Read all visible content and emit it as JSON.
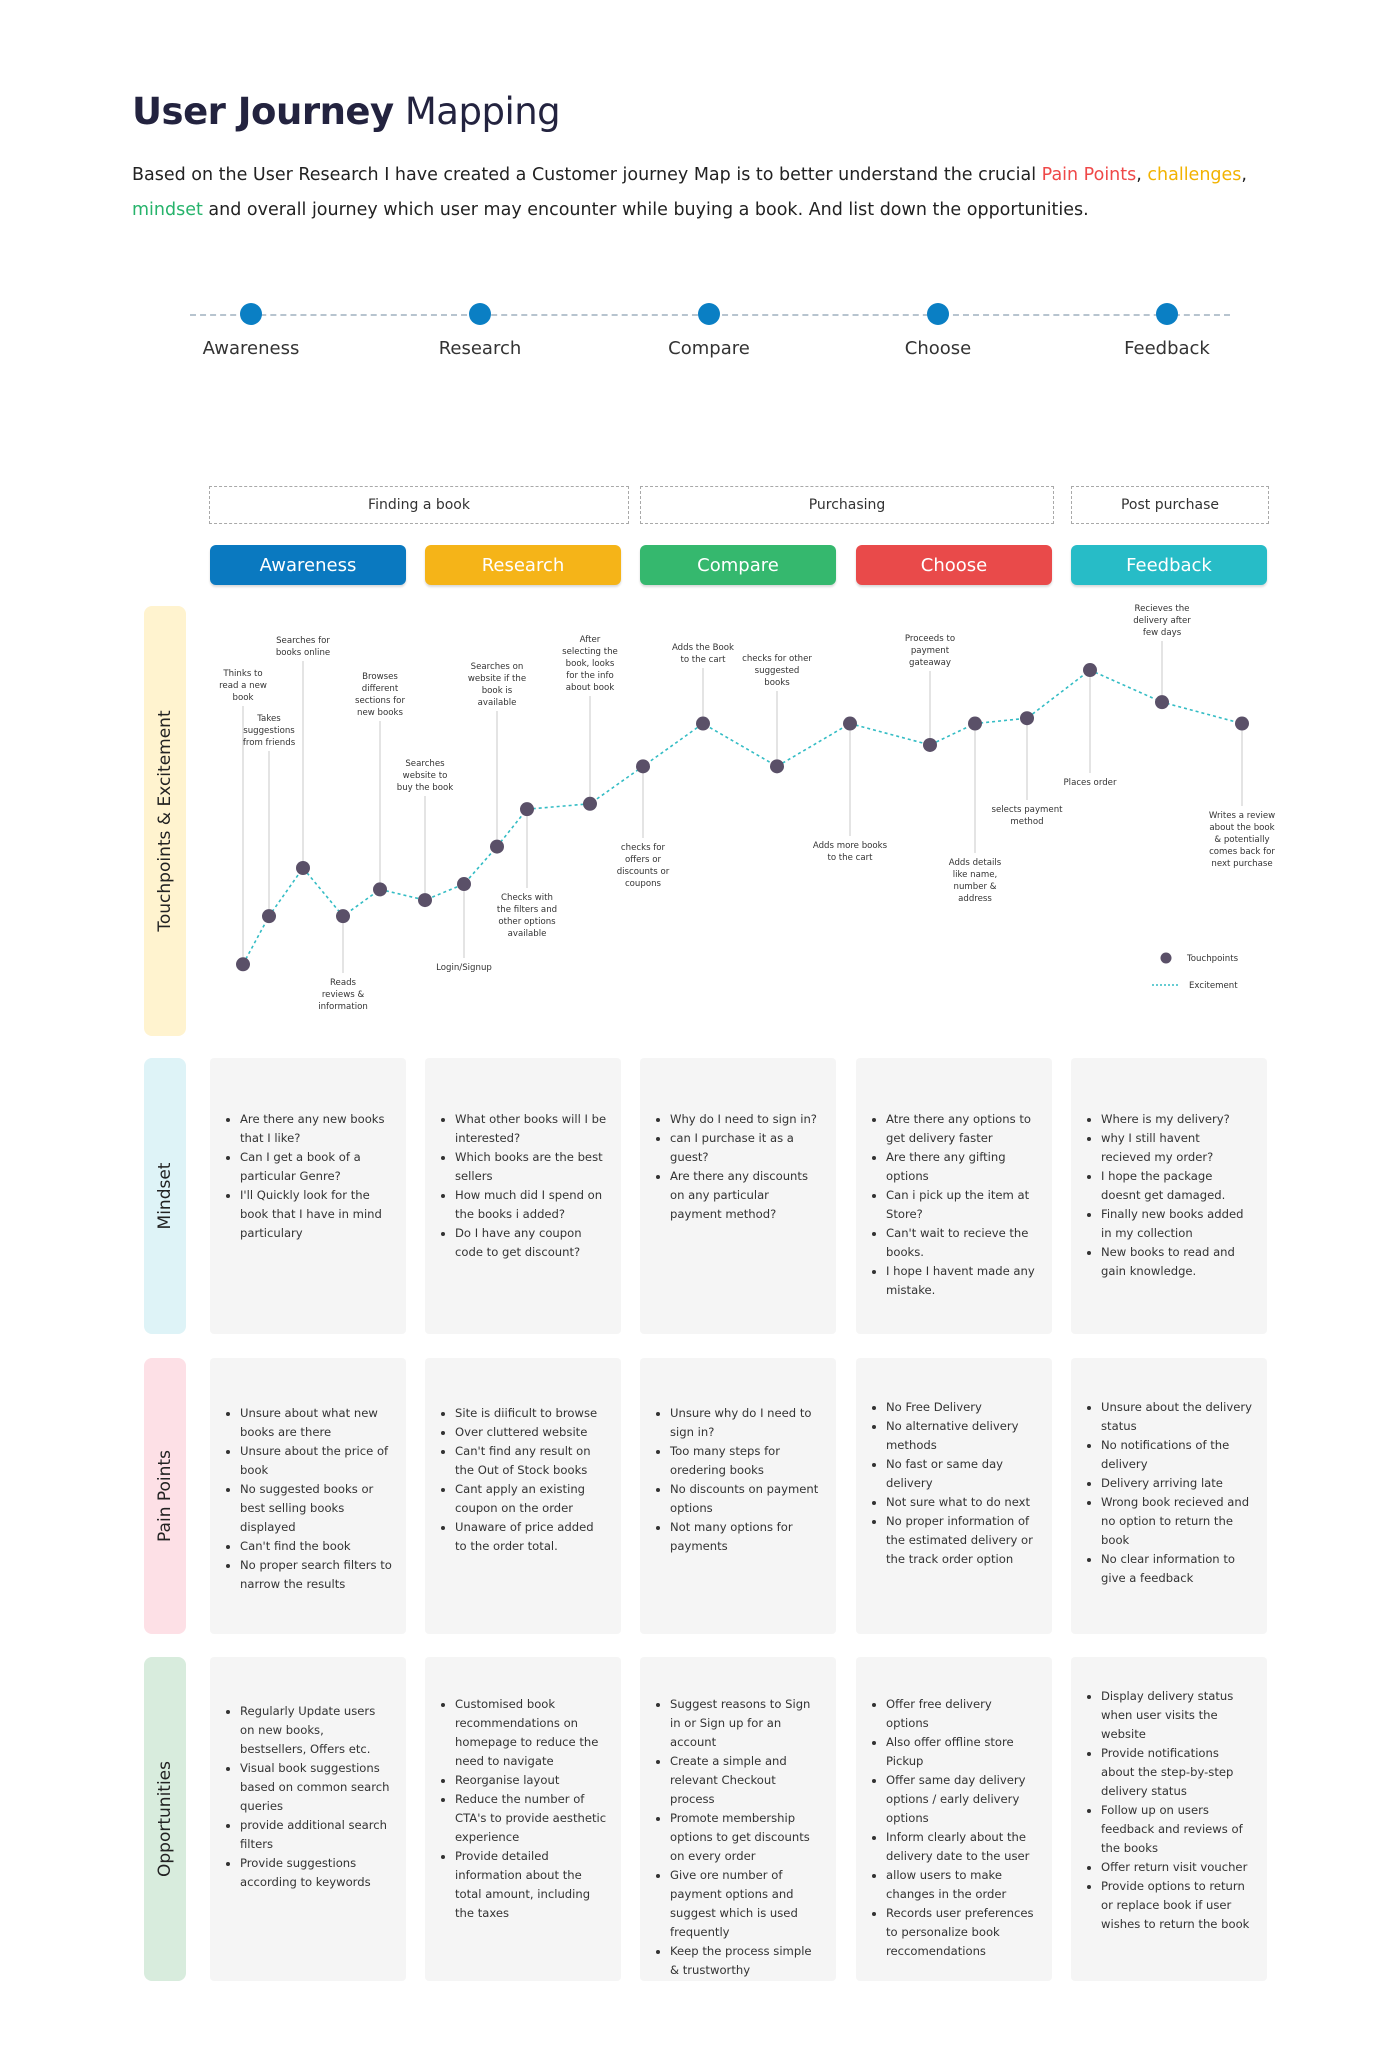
{
  "header": {
    "title_bold": "User Journey",
    "title_rest": " Mapping",
    "intro_part1": "Based on the User Research I have created a Customer journey Map is to better understand the crucial ",
    "hl_pain": "Pain Points",
    "sep1": ", ",
    "hl_challenges": "challenges",
    "sep2": ",",
    "hl_mindset": "mindset",
    "intro_part2": " and overall journey which user may encounter while buying a book. And list down the opportunities."
  },
  "timeline": [
    "Awareness",
    "Research",
    "Compare",
    "Choose",
    "Feedback"
  ],
  "phases": [
    "Finding a book",
    "Purchasing",
    "Post purchase"
  ],
  "stages": [
    {
      "label": "Awareness",
      "color": "#0a79c0"
    },
    {
      "label": "Research",
      "color": "#f5b418"
    },
    {
      "label": "Compare",
      "color": "#35b86e"
    },
    {
      "label": "Choose",
      "color": "#e94a4a"
    },
    {
      "label": "Feedback",
      "color": "#27bcc7"
    }
  ],
  "rows": [
    {
      "label": "Touchpoints & Excitement",
      "color": "#fff3cf"
    },
    {
      "label": "Mindset",
      "color": "#def3f7"
    },
    {
      "label": "Pain Points",
      "color": "#fde0e6"
    },
    {
      "label": "Opportunities",
      "color": "#d8ecdd"
    }
  ],
  "chart_data": {
    "type": "line",
    "y_scale": "excitement (unlabeled)",
    "legend": {
      "position": "bottom-right",
      "entries": [
        "Touchpoints",
        "Excitement"
      ]
    },
    "colors": {
      "point": "#5a5068",
      "line": "#33bcc4"
    },
    "points": [
      {
        "order": 1,
        "level": 2,
        "label": [
          "Thinks to",
          "read a new",
          "book"
        ]
      },
      {
        "order": 2,
        "level": 11,
        "label": [
          "Takes",
          "suggestions",
          "from friends"
        ]
      },
      {
        "order": 3,
        "level": 20,
        "label": [
          "Searches for",
          "books online"
        ]
      },
      {
        "order": 4,
        "level": 11,
        "label": [
          "Reads",
          "reviews &",
          "information"
        ]
      },
      {
        "order": 5,
        "level": 16,
        "label": [
          "Browses",
          "different",
          "sections for",
          "new books"
        ]
      },
      {
        "order": 6,
        "level": 14,
        "label": [
          "Searches",
          "website to",
          "buy the book"
        ]
      },
      {
        "order": 7,
        "level": 17,
        "label": [
          "Login/Signup"
        ]
      },
      {
        "order": 8,
        "level": 24,
        "label": [
          "Searches on",
          "website if the",
          "book is",
          "available"
        ]
      },
      {
        "order": 9,
        "level": 31,
        "label": [
          "Checks with",
          "the filters and",
          "other options",
          "available"
        ]
      },
      {
        "order": 10,
        "level": 32,
        "label": [
          "After",
          "selecting the",
          "book, looks",
          "for the info",
          "about book"
        ]
      },
      {
        "order": 11,
        "level": 39,
        "label": [
          "checks for",
          "offers or",
          "discounts or",
          "coupons"
        ]
      },
      {
        "order": 12,
        "level": 47,
        "label": [
          "Adds the Book",
          "to the cart"
        ]
      },
      {
        "order": 13,
        "level": 39,
        "label": [
          "checks for other",
          "suggested",
          "books"
        ]
      },
      {
        "order": 14,
        "level": 47,
        "label": [
          "Adds more books",
          "to the cart"
        ]
      },
      {
        "order": 15,
        "level": 43,
        "label": [
          "Proceeds to",
          "payment",
          "gateaway"
        ]
      },
      {
        "order": 16,
        "level": 47,
        "label": [
          "Adds  details",
          "like name,",
          "number &",
          "address"
        ]
      },
      {
        "order": 17,
        "level": 48,
        "label": [
          "selects payment",
          "method"
        ]
      },
      {
        "order": 18,
        "level": 57,
        "label": [
          "Places order"
        ]
      },
      {
        "order": 19,
        "level": 51,
        "label": [
          "Recieves the",
          "delivery after",
          "few days"
        ]
      },
      {
        "order": 20,
        "level": 47,
        "label": [
          "Writes a review",
          "about the book",
          "& potentially",
          "comes back for",
          "next purchase"
        ]
      }
    ]
  },
  "mindset": [
    [
      "Are there any new books that I like?",
      "Can I get a book of a particular Genre?",
      "I'll Quickly look for the book that I have in mind particulary"
    ],
    [
      "What other books will I be interested?",
      "Which books are the best sellers",
      "How much did I spend on the books i added?",
      "Do I have any coupon code to get discount?"
    ],
    [
      "Why do I need to sign in?",
      "can I purchase it as a guest?",
      "Are there any discounts on any particular payment method?"
    ],
    [
      "Atre there any options to get delivery faster",
      "Are there any gifting options",
      "Can i pick up the item at Store?",
      "Can't wait to recieve the books.",
      "I hope I havent made any mistake."
    ],
    [
      "Where is my delivery?",
      "why I still havent recieved my order?",
      "I hope the package doesnt get damaged.",
      "Finally new books added in my collection",
      "New books to read and gain knowledge."
    ]
  ],
  "pain_points": [
    [
      "Unsure about what new books are there",
      "Unsure about the price of book",
      "No suggested books or best selling books displayed",
      "Can't find the book",
      "No proper search filters to narrow the results"
    ],
    [
      "Site is diificult to browse",
      "Over cluttered website",
      "Can't find any result on the Out of Stock books",
      "Cant apply an existing coupon on the order",
      "Unaware of price added to the order total."
    ],
    [
      "Unsure why do I need to sign in?",
      "Too many steps for oredering books",
      "No discounts on payment options",
      "Not many options for payments"
    ],
    [
      "No Free Delivery",
      "No alternative delivery methods",
      "No fast or same day delivery",
      "Not sure what to do next",
      "No proper information of the estimated delivery or the track order option"
    ],
    [
      "Unsure about the delivery status",
      "No notifications of the delivery",
      "Delivery arriving late",
      "Wrong book recieved and no option to return the book",
      "No clear information to give a feedback"
    ]
  ],
  "opportunities": [
    [
      "Regularly Update users on new books, bestsellers, Offers etc.",
      "Visual book suggestions based on common search queries",
      "provide additional search filters",
      "Provide suggestions according to keywords"
    ],
    [
      "Customised book recommendations on homepage to reduce the need to navigate",
      "Reorganise layout",
      "Reduce the number of CTA's to provide aesthetic experience",
      "Provide detailed information about the total amount, including the taxes"
    ],
    [
      "Suggest reasons to Sign in or Sign up for an account",
      "Create a simple and relevant Checkout process",
      "Promote membership options to get discounts on every order",
      "Give ore number of payment options and suggest which is used frequently",
      "Keep the process simple & trustworthy"
    ],
    [
      "Offer free delivery options",
      "Also offer offline store Pickup",
      "Offer same day delivery options / early delivery options",
      "Inform clearly about the delivery date to the user",
      "allow users to make changes in the order",
      "Records user preferences to personalize book reccomendations"
    ],
    [
      "Display delivery status when user visits the website",
      "Provide notifications about the step-by-step delivery status",
      "Follow up on users feedback and reviews of the books",
      "Offer return visit voucher",
      "Provide options to return or replace book if user wishes to return the book"
    ]
  ]
}
